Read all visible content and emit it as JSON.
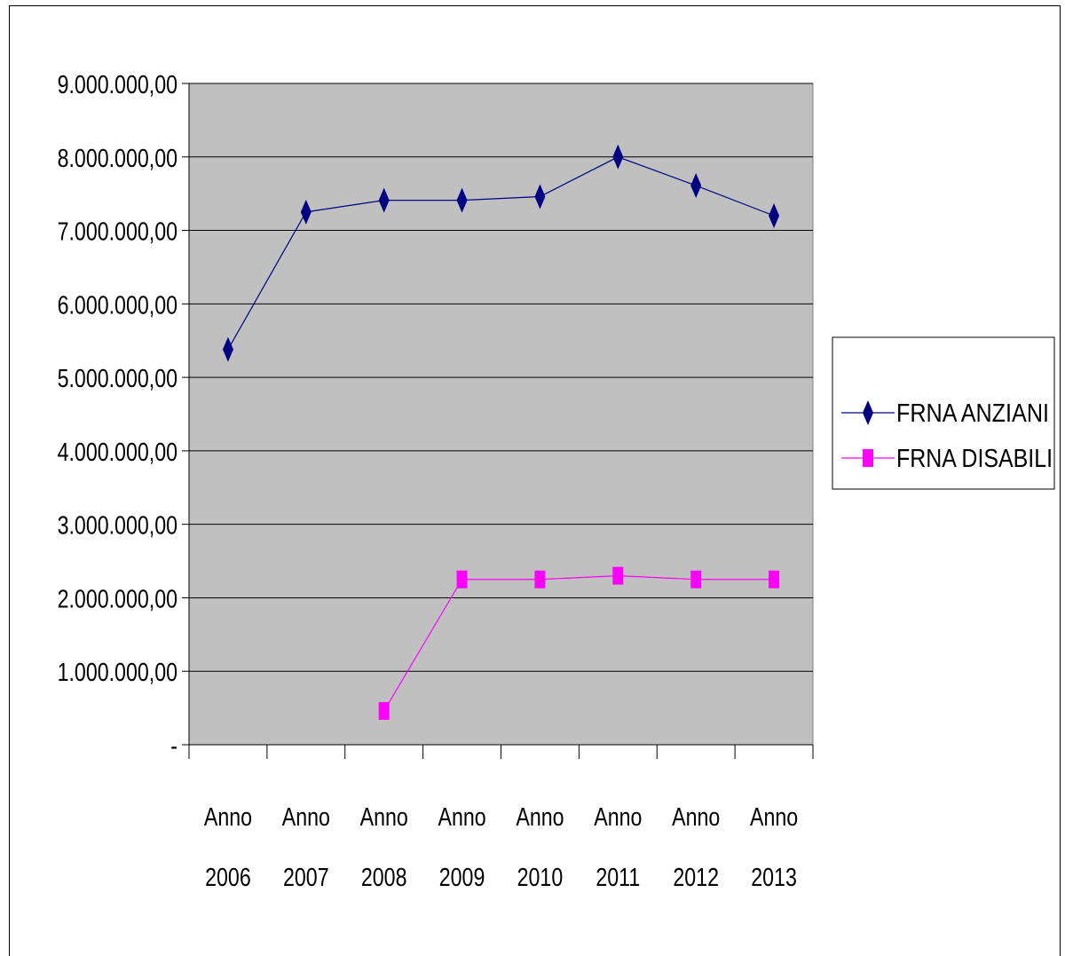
{
  "chart_data": {
    "type": "line",
    "categories": [
      [
        "Anno",
        "2006"
      ],
      [
        "Anno",
        "2007"
      ],
      [
        "Anno",
        "2008"
      ],
      [
        "Anno",
        "2009"
      ],
      [
        "Anno",
        "2010"
      ],
      [
        "Anno",
        "2011"
      ],
      [
        "Anno",
        "2012"
      ],
      [
        "Anno",
        "2013"
      ]
    ],
    "y_ticks": [
      {
        "value": 0,
        "label": "-"
      },
      {
        "value": 1000000,
        "label": "1.000.000,00"
      },
      {
        "value": 2000000,
        "label": "2.000.000,00"
      },
      {
        "value": 3000000,
        "label": "3.000.000,00"
      },
      {
        "value": 4000000,
        "label": "4.000.000,00"
      },
      {
        "value": 5000000,
        "label": "5.000.000,00"
      },
      {
        "value": 6000000,
        "label": "6.000.000,00"
      },
      {
        "value": 7000000,
        "label": "7.000.000,00"
      },
      {
        "value": 8000000,
        "label": "8.000.000,00"
      },
      {
        "value": 9000000,
        "label": "9.000.000,00"
      }
    ],
    "ylim": [
      0,
      9000000
    ],
    "grid": true,
    "legend_position": "right",
    "series": [
      {
        "name": "FRNA ANZIANI",
        "color": "#000080",
        "marker": "diamond",
        "values": [
          5380000,
          7250000,
          7410000,
          7410000,
          7460000,
          8000000,
          7610000,
          7200000
        ]
      },
      {
        "name": "FRNA DISABILI",
        "color": "#ff00ff",
        "marker": "square",
        "values": [
          null,
          null,
          460000,
          2250000,
          2250000,
          2300000,
          2250000,
          2250000
        ]
      }
    ]
  }
}
